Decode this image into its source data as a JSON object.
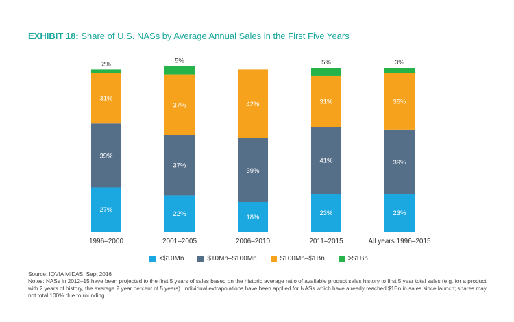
{
  "header": {
    "exhibit_label": "EXHIBIT 18:",
    "title": "Share of U.S. NASs by Average Annual Sales in the First Five Years"
  },
  "chart_data": {
    "type": "bar",
    "stacked": true,
    "categories": [
      "1996–2000",
      "2001–2005",
      "2006–2010",
      "2011–2015",
      "All years 1996–2015"
    ],
    "series": [
      {
        "name": "<$10Mn",
        "color": "#1ba8e0",
        "values": [
          27,
          22,
          18,
          23,
          23
        ]
      },
      {
        "name": "$10Mn–$100Mn",
        "color": "#566f89",
        "values": [
          39,
          37,
          39,
          41,
          39
        ]
      },
      {
        "name": "$100Mn–$1Bn",
        "color": "#f7a21c",
        "values": [
          31,
          37,
          42,
          31,
          35
        ]
      },
      {
        "name": ">$1Bn",
        "color": "#26b34a",
        "values": [
          2,
          5,
          0,
          5,
          3
        ]
      }
    ],
    "data_labels": [
      [
        "27%",
        "22%",
        "18%",
        "23%",
        "23%"
      ],
      [
        "39%",
        "37%",
        "39%",
        "41%",
        "39%"
      ],
      [
        "31%",
        "37%",
        "42%",
        "31%",
        "35%"
      ],
      [
        "2%",
        "5%",
        "",
        "5%",
        "3%"
      ]
    ],
    "legend_position": "bottom",
    "grid": false
  },
  "footer": {
    "source": "Source: IQVIA MIDAS, Sept 2016",
    "notes": "Notes: NASs in 2012–15 have been projected to the first 5 years of sales based on the historic average ratio of available product sales history to first 5 year total sales (e.g. for a product with 2 years of history, the average 2 year percent of 5 years). Individual extrapolations have been applied for NASs which have already reached $1Bn in sales since launch; shares may not total 100% due to rounding."
  }
}
